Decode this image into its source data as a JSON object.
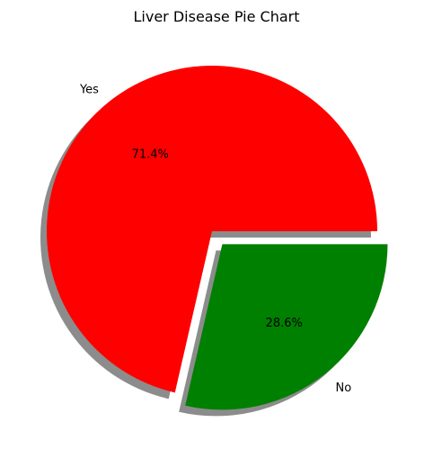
{
  "chart_data": {
    "type": "pie",
    "title": "Liver Disease Pie Chart",
    "slices": [
      {
        "label": "Yes",
        "value": 71.4,
        "percent_label": "71.4%",
        "color": "#ff0000",
        "explode": 0.0
      },
      {
        "label": "No",
        "value": 28.6,
        "percent_label": "28.6%",
        "color": "#008000",
        "explode": 0.1
      }
    ],
    "shadow": true,
    "start_angle": 0,
    "direction": "counterclockwise"
  }
}
